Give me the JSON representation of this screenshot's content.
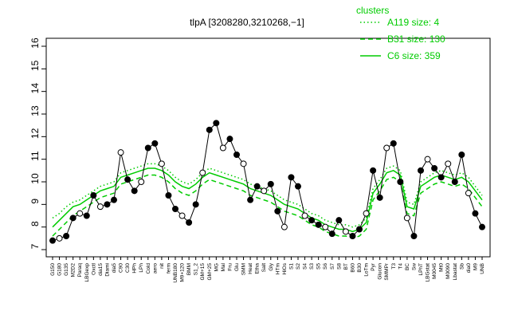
{
  "chart_data": {
    "type": "line",
    "title": "tlpA [3208280,3210268,−1]",
    "legend_title": "clusters",
    "legend_position": "top-right",
    "categories": [
      "G150",
      "G180",
      "G135",
      "M2D2",
      "Paraq",
      "LBGexp",
      "Oxctl",
      "dia15",
      "Diami",
      "dia5",
      "C90",
      "C30",
      "HPh",
      "LPh",
      "Cold",
      "aero",
      "nit",
      "ferm",
      "UNB180",
      "M9+120",
      "BMM",
      "S1_2",
      "GM+15",
      "GM+25",
      "MG",
      "Mal",
      "Fru",
      "Glu",
      "SMM",
      "Heat",
      "Etha",
      "Salt",
      "Gly",
      "HTm",
      "HiOs",
      "S1",
      "S2",
      "S4",
      "S3",
      "S5",
      "S6",
      "S7",
      "S8",
      "BT",
      "B60",
      "B30",
      "LoTm",
      "Pyr",
      "Glucon",
      "SMMPr",
      "T3",
      "T4",
      "BC",
      "Sw",
      "LPhT",
      "LBGstat",
      "M0045",
      "Mt0",
      "M0090",
      "Lbastat",
      "Sb",
      "dia0",
      "M9",
      "UNB"
    ],
    "values": [
      7.4,
      7.5,
      7.6,
      8.4,
      8.6,
      8.5,
      9.4,
      8.9,
      9.0,
      9.2,
      11.3,
      10.1,
      9.6,
      10.0,
      11.5,
      11.7,
      10.8,
      9.4,
      8.8,
      8.5,
      8.2,
      9.0,
      10.4,
      12.3,
      12.6,
      11.5,
      11.9,
      11.2,
      10.8,
      9.2,
      9.8,
      9.6,
      9.9,
      8.7,
      8.0,
      10.2,
      9.8,
      8.5,
      8.3,
      8.1,
      8.0,
      7.7,
      8.3,
      7.8,
      7.6,
      7.9,
      8.6,
      10.5,
      9.3,
      11.5,
      11.7,
      10.0,
      8.4,
      7.6,
      10.5,
      11.0,
      10.6,
      10.2,
      10.8,
      10.0,
      11.2,
      9.5,
      8.6,
      8.0
    ],
    "color": "#000000",
    "series": [
      {
        "name": "A119 size: 4",
        "color": "#00cc00",
        "dash": "dotted",
        "values": [
          8.4,
          8.6,
          8.9,
          9.1,
          9.2,
          9.4,
          9.6,
          9.8,
          9.9,
          10.0,
          10.4,
          10.5,
          10.6,
          10.7,
          10.8,
          10.8,
          10.7,
          10.5,
          10.2,
          10.0,
          9.9,
          10.1,
          10.4,
          10.6,
          10.5,
          10.4,
          10.3,
          10.2,
          10.1,
          9.9,
          9.8,
          9.7,
          9.6,
          9.4,
          9.2,
          9.1,
          9.0,
          8.8,
          8.6,
          8.5,
          8.3,
          8.2,
          8.1,
          8.1,
          8.0,
          8.1,
          8.4,
          9.7,
          10.1,
          10.6,
          10.7,
          10.5,
          9.1,
          9.0,
          10.0,
          10.2,
          10.4,
          10.5,
          10.4,
          10.3,
          10.4,
          10.2,
          9.8,
          9.4
        ]
      },
      {
        "name": "B31 size: 130",
        "color": "#00cc00",
        "dash": "dashed",
        "values": [
          7.6,
          7.9,
          8.2,
          8.5,
          8.7,
          8.9,
          9.1,
          9.3,
          9.4,
          9.5,
          9.9,
          10.0,
          10.1,
          10.2,
          10.3,
          10.3,
          10.2,
          10.0,
          9.7,
          9.5,
          9.4,
          9.6,
          9.9,
          10.1,
          10.0,
          9.9,
          9.8,
          9.7,
          9.6,
          9.4,
          9.3,
          9.2,
          9.1,
          8.9,
          8.7,
          8.6,
          8.5,
          8.3,
          8.1,
          8.0,
          7.8,
          7.7,
          7.6,
          7.6,
          7.5,
          7.6,
          7.9,
          9.2,
          9.6,
          10.1,
          10.2,
          10.0,
          8.6,
          8.5,
          9.5,
          9.7,
          9.9,
          10.0,
          9.9,
          9.8,
          9.9,
          9.7,
          9.3,
          8.9
        ]
      },
      {
        "name": "C6 size: 359",
        "color": "#00cc00",
        "dash": "solid",
        "values": [
          8.0,
          8.3,
          8.6,
          8.9,
          9.0,
          9.2,
          9.4,
          9.6,
          9.7,
          9.8,
          10.2,
          10.3,
          10.4,
          10.5,
          10.6,
          10.6,
          10.5,
          10.3,
          10.0,
          9.8,
          9.7,
          9.9,
          10.2,
          10.4,
          10.3,
          10.2,
          10.1,
          10.0,
          9.9,
          9.7,
          9.6,
          9.5,
          9.4,
          9.2,
          9.0,
          8.9,
          8.8,
          8.6,
          8.4,
          8.3,
          8.1,
          8.0,
          7.9,
          7.9,
          7.8,
          7.9,
          8.2,
          9.5,
          9.9,
          10.4,
          10.5,
          10.3,
          8.9,
          8.8,
          9.8,
          10.0,
          10.2,
          10.3,
          10.2,
          10.1,
          10.2,
          10.0,
          9.6,
          9.2
        ]
      }
    ],
    "ylim": [
      7,
      16
    ],
    "yticks": [
      7,
      8,
      9,
      10,
      11,
      12,
      13,
      14,
      15,
      16
    ]
  }
}
